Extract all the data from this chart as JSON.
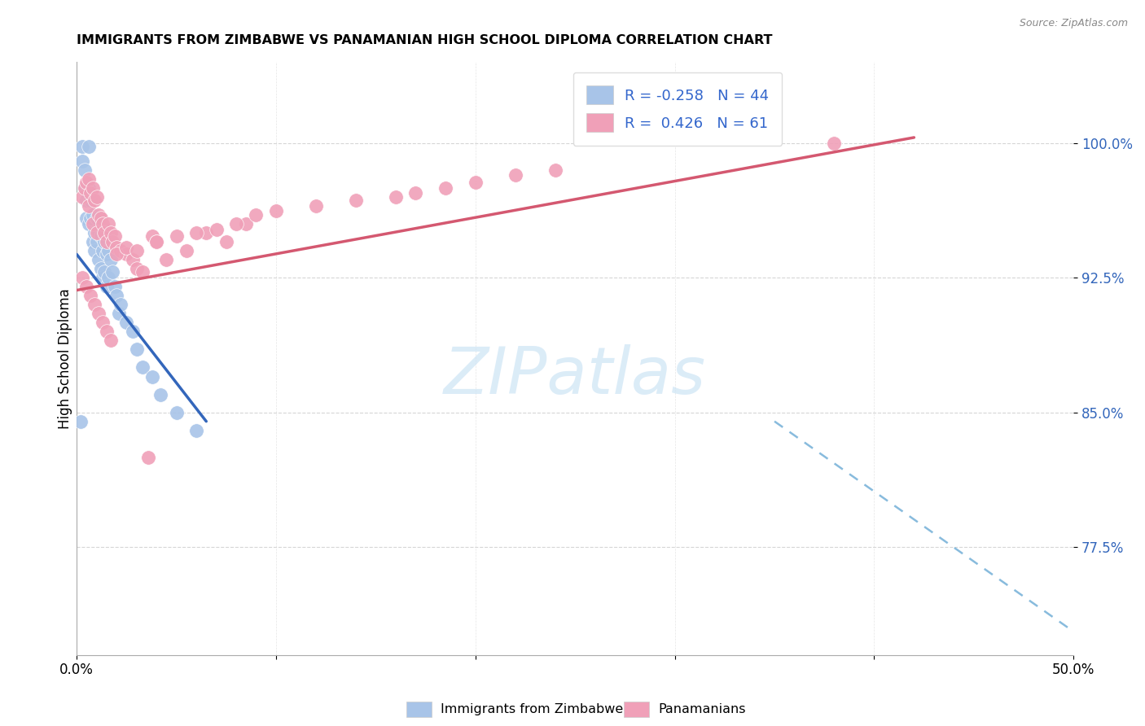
{
  "title": "IMMIGRANTS FROM ZIMBABWE VS PANAMANIAN HIGH SCHOOL DIPLOMA CORRELATION CHART",
  "source": "Source: ZipAtlas.com",
  "ylabel": "High School Diploma",
  "ylabel_ticks": [
    "77.5%",
    "85.0%",
    "92.5%",
    "100.0%"
  ],
  "ylabel_tick_vals": [
    0.775,
    0.85,
    0.925,
    1.0
  ],
  "xlim": [
    0.0,
    0.5
  ],
  "ylim": [
    0.715,
    1.045
  ],
  "legend_r_zimbabwe": "-0.258",
  "legend_n_zimbabwe": "44",
  "legend_r_panamanian": "0.426",
  "legend_n_panamanian": "61",
  "zimbabwe_color": "#a8c4e8",
  "panamanian_color": "#f0a0b8",
  "zimbabwe_line_color": "#3366bb",
  "panamanian_line_color": "#d45870",
  "dashed_line_color": "#88bbdd",
  "watermark_color": "#cde4f5",
  "legend_label_zimbabwe": "Immigrants from Zimbabwe",
  "legend_label_panamanian": "Panamanians",
  "zimbabwe_scatter_x": [
    0.003,
    0.004,
    0.005,
    0.005,
    0.006,
    0.006,
    0.007,
    0.007,
    0.008,
    0.008,
    0.009,
    0.009,
    0.01,
    0.01,
    0.011,
    0.011,
    0.012,
    0.012,
    0.013,
    0.013,
    0.014,
    0.014,
    0.015,
    0.015,
    0.016,
    0.016,
    0.017,
    0.018,
    0.019,
    0.02,
    0.021,
    0.022,
    0.025,
    0.028,
    0.03,
    0.033,
    0.038,
    0.042,
    0.05,
    0.06,
    0.002,
    0.003,
    0.004,
    0.006
  ],
  "zimbabwe_scatter_y": [
    0.998,
    0.975,
    0.968,
    0.958,
    0.975,
    0.955,
    0.968,
    0.958,
    0.96,
    0.945,
    0.95,
    0.94,
    0.958,
    0.945,
    0.95,
    0.935,
    0.948,
    0.93,
    0.94,
    0.925,
    0.945,
    0.928,
    0.938,
    0.92,
    0.94,
    0.925,
    0.935,
    0.928,
    0.92,
    0.915,
    0.905,
    0.91,
    0.9,
    0.895,
    0.885,
    0.875,
    0.87,
    0.86,
    0.85,
    0.84,
    0.845,
    0.99,
    0.985,
    0.998
  ],
  "panamanian_scatter_x": [
    0.003,
    0.004,
    0.005,
    0.006,
    0.006,
    0.007,
    0.008,
    0.008,
    0.009,
    0.01,
    0.01,
    0.011,
    0.012,
    0.013,
    0.014,
    0.015,
    0.016,
    0.017,
    0.018,
    0.019,
    0.02,
    0.022,
    0.025,
    0.028,
    0.03,
    0.033,
    0.038,
    0.04,
    0.045,
    0.055,
    0.065,
    0.075,
    0.085,
    0.02,
    0.025,
    0.03,
    0.04,
    0.05,
    0.06,
    0.07,
    0.08,
    0.09,
    0.1,
    0.12,
    0.14,
    0.16,
    0.17,
    0.185,
    0.2,
    0.22,
    0.24,
    0.003,
    0.005,
    0.007,
    0.009,
    0.011,
    0.013,
    0.015,
    0.017,
    0.036,
    0.38
  ],
  "panamanian_scatter_y": [
    0.97,
    0.975,
    0.978,
    0.98,
    0.965,
    0.972,
    0.975,
    0.955,
    0.968,
    0.97,
    0.95,
    0.96,
    0.958,
    0.955,
    0.95,
    0.945,
    0.955,
    0.95,
    0.945,
    0.948,
    0.942,
    0.94,
    0.938,
    0.935,
    0.93,
    0.928,
    0.948,
    0.945,
    0.935,
    0.94,
    0.95,
    0.945,
    0.955,
    0.938,
    0.942,
    0.94,
    0.945,
    0.948,
    0.95,
    0.952,
    0.955,
    0.96,
    0.962,
    0.965,
    0.968,
    0.97,
    0.972,
    0.975,
    0.978,
    0.982,
    0.985,
    0.925,
    0.92,
    0.915,
    0.91,
    0.905,
    0.9,
    0.895,
    0.89,
    0.825,
    1.0
  ],
  "zimbabwe_trend_x": [
    0.0,
    0.065
  ],
  "zimbabwe_trend_y": [
    0.938,
    0.845
  ],
  "panamanian_trend_x": [
    0.0,
    0.42
  ],
  "panamanian_trend_y": [
    0.918,
    1.003
  ],
  "dashed_trend_x": [
    0.35,
    0.5
  ],
  "dashed_trend_y": [
    0.845,
    0.728
  ]
}
